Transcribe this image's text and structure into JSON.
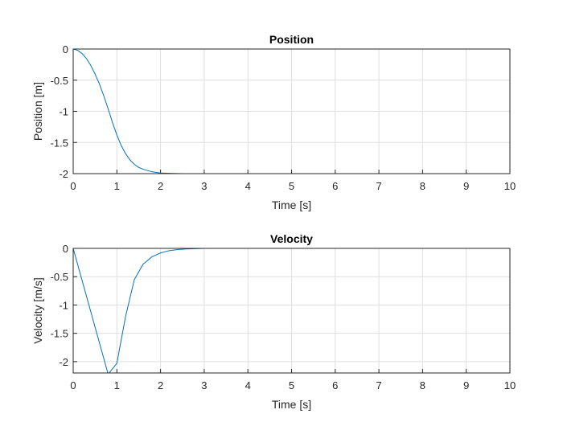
{
  "chart_data": [
    {
      "type": "line",
      "title": "Position",
      "xlabel": "Time [s]",
      "ylabel": "Position [m]",
      "xlim": [
        0,
        10
      ],
      "ylim": [
        -2,
        0
      ],
      "xticks": [
        "0",
        "1",
        "2",
        "3",
        "4",
        "5",
        "6",
        "7",
        "8",
        "9",
        "10"
      ],
      "yticks": [
        "0",
        "-0.5",
        "-1",
        "-1.5",
        "-2"
      ],
      "grid": true,
      "series": [
        {
          "color": "#0072BD",
          "x": [
            0,
            0.1,
            0.2,
            0.3,
            0.4,
            0.5,
            0.6,
            0.7,
            0.8,
            0.9,
            1.0,
            1.1,
            1.2,
            1.3,
            1.4,
            1.5,
            1.6,
            1.8,
            2.0,
            2.2,
            2.5,
            3.0,
            4.0,
            5.0,
            6.0,
            7.0,
            8.0,
            9.0,
            10.0
          ],
          "y": [
            0,
            -0.02,
            -0.07,
            -0.15,
            -0.26,
            -0.4,
            -0.56,
            -0.75,
            -0.96,
            -1.18,
            -1.38,
            -1.55,
            -1.68,
            -1.78,
            -1.85,
            -1.9,
            -1.93,
            -1.97,
            -1.99,
            -1.995,
            -2.0,
            -2.0,
            -2.0,
            -2.0,
            -2.0,
            -2.0,
            -2.0,
            -2.0,
            -2.0
          ]
        },
        {
          "color": "#CC00CC",
          "x": [
            0,
            10
          ],
          "y": [
            -2,
            -2
          ]
        }
      ]
    },
    {
      "type": "line",
      "title": "Velocity",
      "xlabel": "Time [s]",
      "ylabel": "Velocity [m/s]",
      "xlim": [
        0,
        10
      ],
      "ylim": [
        -2.2,
        0
      ],
      "xticks": [
        "0",
        "1",
        "2",
        "3",
        "4",
        "5",
        "6",
        "7",
        "8",
        "9",
        "10"
      ],
      "yticks": [
        "0",
        "-0.5",
        "-1",
        "-1.5",
        "-2"
      ],
      "grid": true,
      "series": [
        {
          "color": "#0072BD",
          "x": [
            0,
            0.8,
            1.0,
            1.2,
            1.4,
            1.6,
            1.8,
            2.0,
            2.2,
            2.4,
            2.6,
            2.8,
            3.0,
            3.5,
            4.0,
            5.0,
            6.0,
            7.0,
            8.0,
            9.0,
            10.0
          ],
          "y": [
            0,
            -2.22,
            -2.03,
            -1.2,
            -0.55,
            -0.28,
            -0.15,
            -0.08,
            -0.04,
            -0.02,
            -0.01,
            -0.005,
            0,
            0,
            0,
            0,
            0,
            0,
            0,
            0,
            0
          ]
        },
        {
          "color": "#262626",
          "x": [
            0,
            10
          ],
          "y": [
            0,
            0
          ]
        }
      ]
    }
  ]
}
